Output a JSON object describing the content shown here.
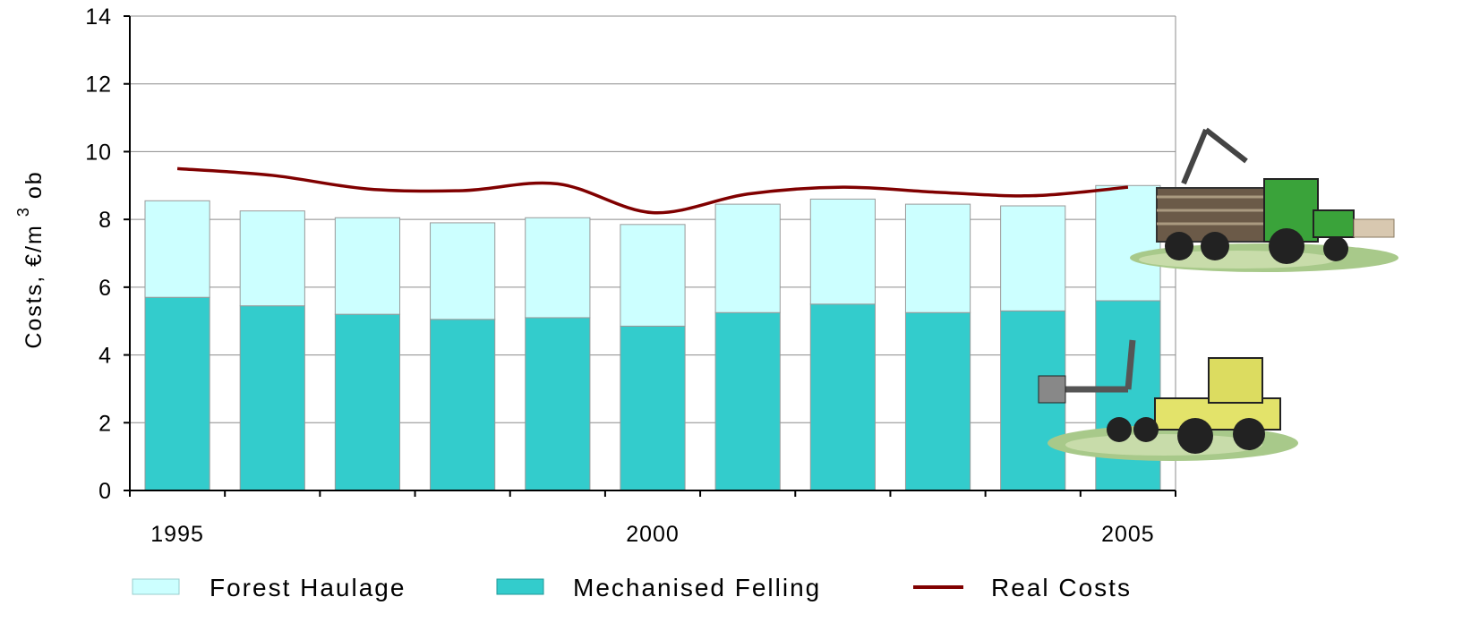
{
  "chart_data": {
    "type": "bar",
    "stacked": true,
    "x": [
      1995,
      1996,
      1997,
      1998,
      1999,
      2000,
      2001,
      2002,
      2003,
      2004,
      2005
    ],
    "x_tick_labels": [
      "1995",
      "2000",
      "2005"
    ],
    "ylabel_main": "Costs,  €/m",
    "ylabel_sup": "3",
    "ylabel_tail": "ob",
    "ylim": [
      0,
      14
    ],
    "yticks": [
      "0",
      "2",
      "4",
      "6",
      "8",
      "10",
      "12",
      "14"
    ],
    "grid": true,
    "legend_position": "bottom",
    "series": [
      {
        "name": "Mechanised Felling",
        "kind": "bar",
        "color": "#33cccc",
        "values": [
          5.7,
          5.45,
          5.2,
          5.05,
          5.1,
          4.85,
          5.25,
          5.5,
          5.25,
          5.3,
          5.6
        ]
      },
      {
        "name": "Forest Haulage",
        "kind": "bar",
        "color": "#ccffff",
        "values": [
          2.85,
          2.8,
          2.85,
          2.85,
          2.95,
          3.0,
          3.2,
          3.1,
          3.2,
          3.1,
          3.4
        ]
      },
      {
        "name": "Real Costs",
        "kind": "line",
        "color": "#800000",
        "values": [
          9.5,
          9.3,
          8.9,
          8.85,
          9.05,
          8.2,
          8.75,
          8.95,
          8.8,
          8.7,
          8.95
        ]
      }
    ],
    "legend_order": [
      "Forest Haulage",
      "Mechanised Felling",
      "Real Costs"
    ],
    "images": [
      {
        "name": "forwarder-tractor-illustration"
      },
      {
        "name": "harvester-machine-illustration"
      }
    ]
  }
}
